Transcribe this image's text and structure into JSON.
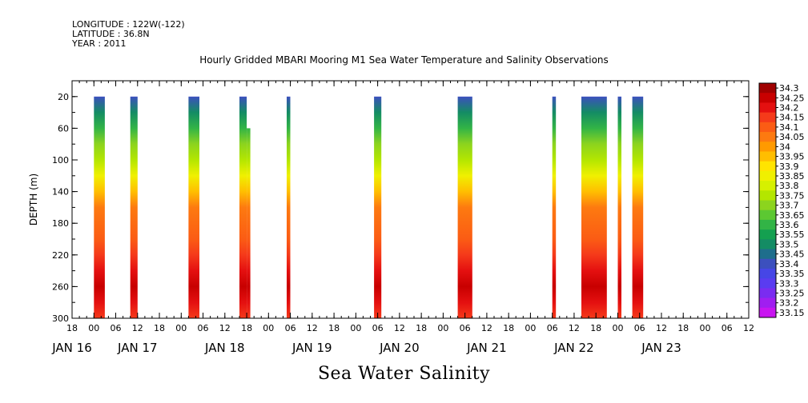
{
  "header": {
    "longitude": "LONGITUDE : 122W(-122)",
    "latitude": "LATITUDE : 36.8N",
    "year": "YEAR : 2011"
  },
  "chart_title": "Hourly Gridded MBARI Mooring M1 Sea Water Temperature and Salinity Observations",
  "variable_title": "Sea Water Salinity",
  "chart_data": {
    "type": "heatmap",
    "title": "Hourly Gridded MBARI Mooring M1 Sea Water Temperature and Salinity Observations",
    "subtitle": "Sea Water Salinity",
    "ylabel": "DEPTH (m)",
    "xlabel": "",
    "y_reversed": true,
    "ylim": [
      300,
      0
    ],
    "xlim": [
      -6,
      180
    ],
    "x_units": "hours since JAN 16 00",
    "y_ticks": [
      20,
      60,
      100,
      140,
      180,
      220,
      260,
      300
    ],
    "x_hour_ticks": [
      {
        "h": -6,
        "label": "18"
      },
      {
        "h": 0,
        "label": "00"
      },
      {
        "h": 6,
        "label": "06"
      },
      {
        "h": 12,
        "label": "12"
      },
      {
        "h": 18,
        "label": "18"
      },
      {
        "h": 24,
        "label": "00"
      },
      {
        "h": 30,
        "label": "06"
      },
      {
        "h": 36,
        "label": "12"
      },
      {
        "h": 42,
        "label": "18"
      },
      {
        "h": 48,
        "label": "00"
      },
      {
        "h": 54,
        "label": "06"
      },
      {
        "h": 60,
        "label": "12"
      },
      {
        "h": 66,
        "label": "18"
      },
      {
        "h": 72,
        "label": "00"
      },
      {
        "h": 78,
        "label": "06"
      },
      {
        "h": 84,
        "label": "12"
      },
      {
        "h": 90,
        "label": "18"
      },
      {
        "h": 96,
        "label": "00"
      },
      {
        "h": 102,
        "label": "06"
      },
      {
        "h": 108,
        "label": "12"
      },
      {
        "h": 114,
        "label": "18"
      },
      {
        "h": 120,
        "label": "00"
      },
      {
        "h": 126,
        "label": "06"
      },
      {
        "h": 132,
        "label": "12"
      },
      {
        "h": 138,
        "label": "18"
      },
      {
        "h": 144,
        "label": "00"
      },
      {
        "h": 150,
        "label": "06"
      },
      {
        "h": 156,
        "label": "12"
      },
      {
        "h": 162,
        "label": "18"
      },
      {
        "h": 168,
        "label": "00"
      },
      {
        "h": 174,
        "label": "06"
      },
      {
        "h": 180,
        "label": "12"
      }
    ],
    "x_day_labels": [
      {
        "h": -6,
        "label": "JAN 16"
      },
      {
        "h": 12,
        "label": "JAN 17"
      },
      {
        "h": 36,
        "label": "JAN 18"
      },
      {
        "h": 60,
        "label": "JAN 19"
      },
      {
        "h": 84,
        "label": "JAN 20"
      },
      {
        "h": 108,
        "label": "JAN 21"
      },
      {
        "h": 132,
        "label": "JAN 22"
      },
      {
        "h": 156,
        "label": "JAN 23"
      }
    ],
    "data_columns": [
      {
        "start_h": 0,
        "end_h": 3
      },
      {
        "start_h": 10,
        "end_h": 12
      },
      {
        "start_h": 26,
        "end_h": 29
      },
      {
        "start_h": 40,
        "end_h": 42,
        "min_depth": 20
      },
      {
        "start_h": 42,
        "end_h": 43,
        "min_depth": 60
      },
      {
        "start_h": 53,
        "end_h": 54
      },
      {
        "start_h": 77,
        "end_h": 79
      },
      {
        "start_h": 100,
        "end_h": 104
      },
      {
        "start_h": 126,
        "end_h": 127
      },
      {
        "start_h": 134,
        "end_h": 141
      },
      {
        "start_h": 144,
        "end_h": 145
      },
      {
        "start_h": 148,
        "end_h": 151
      }
    ],
    "salinity_profile": [
      {
        "depth": 20,
        "value": 33.4
      },
      {
        "depth": 40,
        "value": 33.5
      },
      {
        "depth": 60,
        "value": 33.6
      },
      {
        "depth": 80,
        "value": 33.7
      },
      {
        "depth": 100,
        "value": 33.78
      },
      {
        "depth": 120,
        "value": 33.88
      },
      {
        "depth": 140,
        "value": 33.98
      },
      {
        "depth": 160,
        "value": 34.05
      },
      {
        "depth": 200,
        "value": 34.1
      },
      {
        "depth": 220,
        "value": 34.15
      },
      {
        "depth": 240,
        "value": 34.22
      },
      {
        "depth": 260,
        "value": 34.25
      },
      {
        "depth": 280,
        "value": 34.22
      },
      {
        "depth": 300,
        "value": 34.18
      }
    ],
    "colorbar": {
      "levels": [
        34.3,
        34.25,
        34.2,
        34.15,
        34.1,
        34.05,
        34,
        33.95,
        33.9,
        33.85,
        33.8,
        33.75,
        33.7,
        33.65,
        33.6,
        33.55,
        33.5,
        33.45,
        33.4,
        33.35,
        33.3,
        33.25,
        33.2,
        33.15
      ],
      "labels": [
        "34.3",
        "34.25",
        "34.2",
        "34.15",
        "34.1",
        "34.05",
        "34",
        "33.95",
        "33.9",
        "33.85",
        "33.8",
        "33.75",
        "33.7",
        "33.65",
        "33.6",
        "33.55",
        "33.5",
        "33.45",
        "33.4",
        "33.35",
        "33.3",
        "33.25",
        "33.2",
        "33.15"
      ],
      "colors": [
        "#a00000",
        "#c80000",
        "#e41010",
        "#f53a1a",
        "#fb5c14",
        "#fd7a10",
        "#ff9a00",
        "#ffbe00",
        "#ffe400",
        "#f0f000",
        "#d6f000",
        "#b4e600",
        "#8cd41e",
        "#5cc832",
        "#32b446",
        "#14a050",
        "#148c64",
        "#1e6e8c",
        "#3c50be",
        "#4646e6",
        "#5a3cf0",
        "#7a2cf0",
        "#a01ef0",
        "#c814f0"
      ]
    }
  }
}
